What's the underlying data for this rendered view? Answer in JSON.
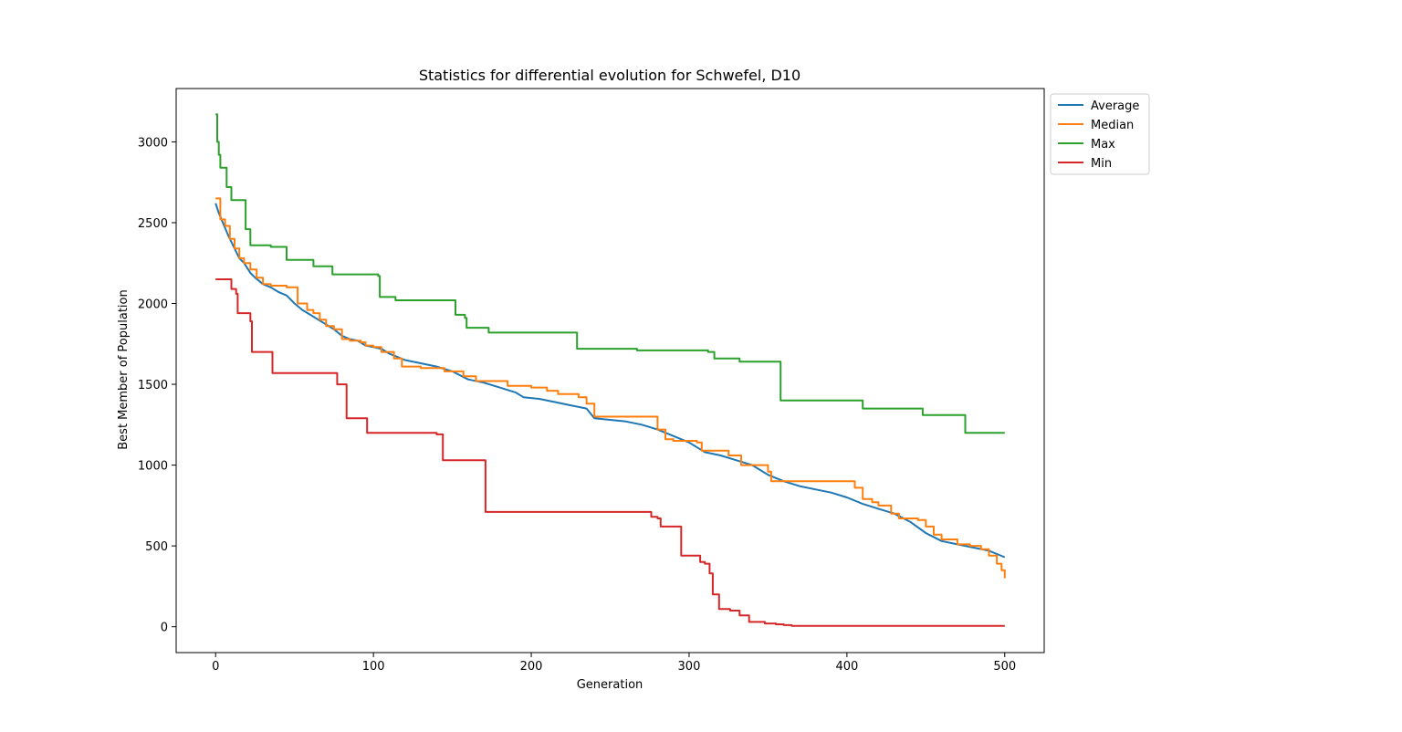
{
  "chart_data": {
    "type": "line",
    "title": "Statistics for differential evolution for Schwefel, D10",
    "xlabel": "Generation",
    "ylabel": "Best Member of Population",
    "xlim": [
      -25,
      525
    ],
    "ylim": [
      -160,
      3330
    ],
    "xticks": [
      0,
      100,
      200,
      300,
      400,
      500
    ],
    "yticks": [
      0,
      500,
      1000,
      1500,
      2000,
      2500,
      3000
    ],
    "grid": false,
    "legend_position": "outside-top-right",
    "series": [
      {
        "name": "Average",
        "color": "#1f77b4",
        "step": false,
        "points": [
          [
            0,
            2620
          ],
          [
            2,
            2560
          ],
          [
            5,
            2490
          ],
          [
            8,
            2420
          ],
          [
            12,
            2340
          ],
          [
            15,
            2280
          ],
          [
            18,
            2250
          ],
          [
            22,
            2190
          ],
          [
            25,
            2160
          ],
          [
            30,
            2120
          ],
          [
            35,
            2100
          ],
          [
            40,
            2070
          ],
          [
            45,
            2050
          ],
          [
            50,
            2000
          ],
          [
            55,
            1960
          ],
          [
            60,
            1930
          ],
          [
            65,
            1900
          ],
          [
            70,
            1870
          ],
          [
            75,
            1840
          ],
          [
            80,
            1800
          ],
          [
            85,
            1780
          ],
          [
            90,
            1770
          ],
          [
            95,
            1740
          ],
          [
            100,
            1730
          ],
          [
            105,
            1720
          ],
          [
            110,
            1690
          ],
          [
            115,
            1670
          ],
          [
            120,
            1650
          ],
          [
            130,
            1630
          ],
          [
            140,
            1610
          ],
          [
            150,
            1580
          ],
          [
            160,
            1530
          ],
          [
            170,
            1510
          ],
          [
            180,
            1480
          ],
          [
            190,
            1450
          ],
          [
            195,
            1420
          ],
          [
            205,
            1410
          ],
          [
            215,
            1390
          ],
          [
            225,
            1370
          ],
          [
            235,
            1350
          ],
          [
            240,
            1290
          ],
          [
            250,
            1280
          ],
          [
            260,
            1270
          ],
          [
            270,
            1250
          ],
          [
            280,
            1220
          ],
          [
            290,
            1180
          ],
          [
            300,
            1140
          ],
          [
            310,
            1080
          ],
          [
            320,
            1060
          ],
          [
            330,
            1030
          ],
          [
            340,
            1000
          ],
          [
            350,
            940
          ],
          [
            360,
            900
          ],
          [
            370,
            870
          ],
          [
            380,
            850
          ],
          [
            390,
            830
          ],
          [
            400,
            800
          ],
          [
            410,
            760
          ],
          [
            420,
            730
          ],
          [
            430,
            700
          ],
          [
            440,
            650
          ],
          [
            450,
            580
          ],
          [
            460,
            530
          ],
          [
            470,
            510
          ],
          [
            480,
            490
          ],
          [
            490,
            470
          ],
          [
            500,
            430
          ]
        ]
      },
      {
        "name": "Median",
        "color": "#ff7f0e",
        "step": true,
        "points": [
          [
            0,
            2650
          ],
          [
            3,
            2520
          ],
          [
            6,
            2480
          ],
          [
            9,
            2400
          ],
          [
            12,
            2340
          ],
          [
            15,
            2280
          ],
          [
            18,
            2250
          ],
          [
            22,
            2210
          ],
          [
            26,
            2160
          ],
          [
            30,
            2120
          ],
          [
            35,
            2110
          ],
          [
            45,
            2100
          ],
          [
            52,
            2000
          ],
          [
            58,
            1960
          ],
          [
            62,
            1940
          ],
          [
            66,
            1900
          ],
          [
            70,
            1860
          ],
          [
            75,
            1840
          ],
          [
            80,
            1780
          ],
          [
            85,
            1770
          ],
          [
            92,
            1760
          ],
          [
            95,
            1740
          ],
          [
            100,
            1730
          ],
          [
            105,
            1700
          ],
          [
            113,
            1660
          ],
          [
            118,
            1610
          ],
          [
            130,
            1600
          ],
          [
            145,
            1580
          ],
          [
            157,
            1550
          ],
          [
            165,
            1520
          ],
          [
            185,
            1490
          ],
          [
            200,
            1480
          ],
          [
            210,
            1460
          ],
          [
            217,
            1440
          ],
          [
            230,
            1420
          ],
          [
            235,
            1380
          ],
          [
            240,
            1300
          ],
          [
            280,
            1220
          ],
          [
            285,
            1160
          ],
          [
            290,
            1150
          ],
          [
            305,
            1140
          ],
          [
            308,
            1090
          ],
          [
            325,
            1060
          ],
          [
            333,
            1000
          ],
          [
            350,
            960
          ],
          [
            352,
            900
          ],
          [
            373,
            900
          ],
          [
            405,
            860
          ],
          [
            410,
            790
          ],
          [
            416,
            770
          ],
          [
            420,
            750
          ],
          [
            428,
            700
          ],
          [
            433,
            670
          ],
          [
            445,
            660
          ],
          [
            450,
            620
          ],
          [
            455,
            570
          ],
          [
            460,
            540
          ],
          [
            470,
            510
          ],
          [
            478,
            500
          ],
          [
            485,
            480
          ],
          [
            490,
            440
          ],
          [
            495,
            390
          ],
          [
            498,
            350
          ],
          [
            500,
            300
          ]
        ]
      },
      {
        "name": "Max",
        "color": "#2ca02c",
        "step": true,
        "points": [
          [
            0,
            3170
          ],
          [
            1,
            3000
          ],
          [
            2,
            2920
          ],
          [
            3,
            2840
          ],
          [
            7,
            2720
          ],
          [
            10,
            2640
          ],
          [
            18,
            2640
          ],
          [
            19,
            2460
          ],
          [
            22,
            2360
          ],
          [
            35,
            2350
          ],
          [
            45,
            2270
          ],
          [
            62,
            2230
          ],
          [
            74,
            2180
          ],
          [
            103,
            2170
          ],
          [
            104,
            2040
          ],
          [
            114,
            2020
          ],
          [
            151,
            2020
          ],
          [
            152,
            1930
          ],
          [
            158,
            1910
          ],
          [
            159,
            1850
          ],
          [
            173,
            1820
          ],
          [
            228,
            1820
          ],
          [
            229,
            1720
          ],
          [
            267,
            1710
          ],
          [
            312,
            1700
          ],
          [
            316,
            1660
          ],
          [
            332,
            1640
          ],
          [
            357,
            1640
          ],
          [
            358,
            1400
          ],
          [
            409,
            1400
          ],
          [
            410,
            1350
          ],
          [
            447,
            1350
          ],
          [
            448,
            1310
          ],
          [
            474,
            1310
          ],
          [
            475,
            1200
          ],
          [
            500,
            1200
          ]
        ]
      },
      {
        "name": "Min",
        "color": "#d62728",
        "step": true,
        "points": [
          [
            0,
            2150
          ],
          [
            10,
            2090
          ],
          [
            13,
            2060
          ],
          [
            14,
            1940
          ],
          [
            22,
            1890
          ],
          [
            23,
            1700
          ],
          [
            35,
            1700
          ],
          [
            36,
            1570
          ],
          [
            76,
            1570
          ],
          [
            77,
            1500
          ],
          [
            82,
            1500
          ],
          [
            83,
            1290
          ],
          [
            95,
            1290
          ],
          [
            96,
            1200
          ],
          [
            140,
            1190
          ],
          [
            144,
            1030
          ],
          [
            170,
            1030
          ],
          [
            171,
            710
          ],
          [
            275,
            710
          ],
          [
            276,
            680
          ],
          [
            280,
            670
          ],
          [
            282,
            620
          ],
          [
            294,
            620
          ],
          [
            295,
            440
          ],
          [
            305,
            440
          ],
          [
            307,
            400
          ],
          [
            310,
            390
          ],
          [
            313,
            330
          ],
          [
            315,
            200
          ],
          [
            319,
            110
          ],
          [
            323,
            110
          ],
          [
            326,
            100
          ],
          [
            332,
            70
          ],
          [
            338,
            30
          ],
          [
            348,
            20
          ],
          [
            355,
            15
          ],
          [
            360,
            10
          ],
          [
            365,
            5
          ],
          [
            500,
            5
          ]
        ]
      }
    ]
  }
}
